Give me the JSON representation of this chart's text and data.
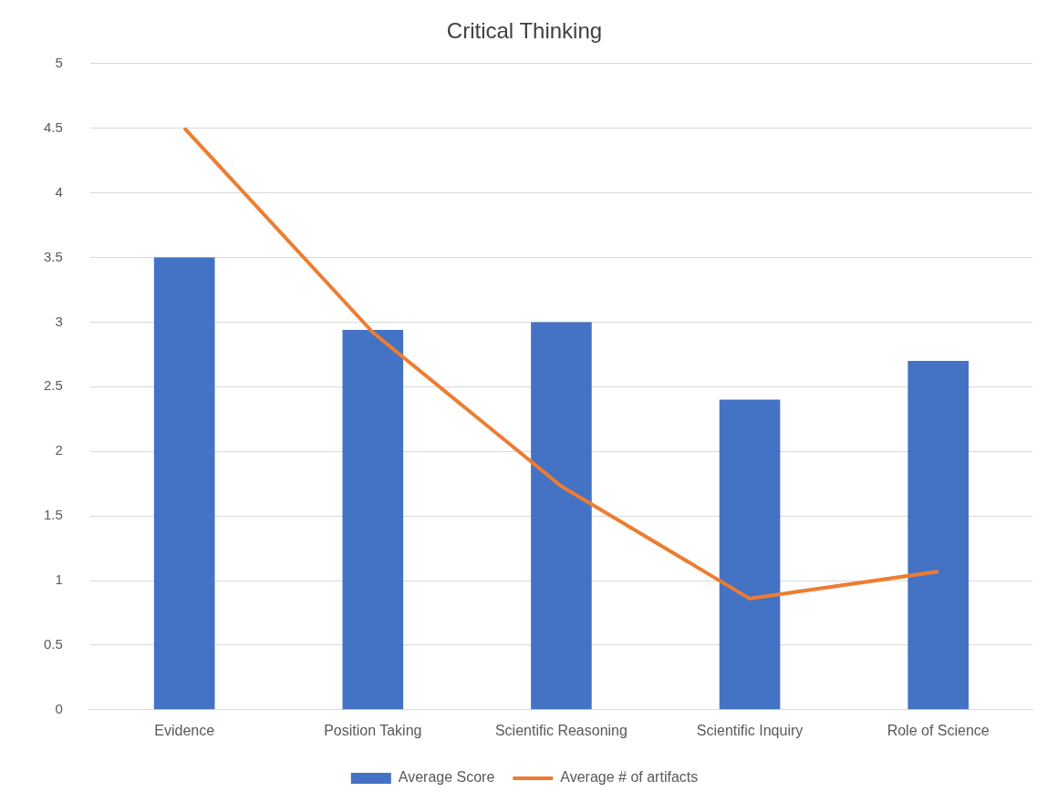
{
  "chart_data": {
    "type": "bar",
    "title": "Critical Thinking",
    "categories": [
      "Evidence",
      "Position Taking",
      "Scientific Reasoning",
      "Scientific Inquiry",
      "Role of Science"
    ],
    "series": [
      {
        "name": "Average Score",
        "color": "#4472c4",
        "values": [
          3.5,
          2.94,
          3.0,
          2.4,
          2.7
        ]
      },
      {
        "name": "Average # of artifacts",
        "type": "line",
        "color": "#ed7d31",
        "values": [
          4.5,
          2.92,
          1.73,
          0.86,
          1.07
        ]
      }
    ],
    "ylim": [
      0,
      5
    ],
    "yticks": [
      0,
      0.5,
      1,
      1.5,
      2,
      2.5,
      3,
      3.5,
      4,
      4.5,
      5
    ],
    "grid": "y",
    "legend": "bottom",
    "marker": "none"
  }
}
